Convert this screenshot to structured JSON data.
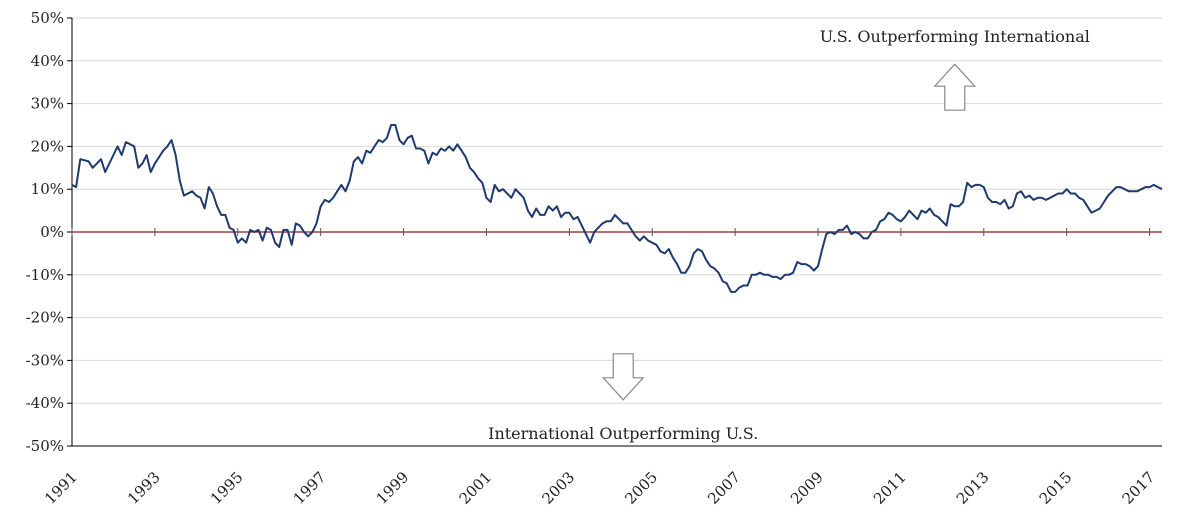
{
  "chart_data": {
    "type": "line",
    "title": "",
    "xlabel": "",
    "ylabel": "",
    "ylim": [
      -50,
      50
    ],
    "xlim": [
      1991.0,
      2017.3
    ],
    "grid": true,
    "legend": "none",
    "y_ticks": [
      "50%",
      "40%",
      "30%",
      "20%",
      "10%",
      "0%",
      "-10%",
      "-20%",
      "-30%",
      "-40%",
      "-50%"
    ],
    "y_tick_values": [
      50,
      40,
      30,
      20,
      10,
      0,
      -10,
      -20,
      -30,
      -40,
      -50
    ],
    "x_ticks": [
      "1991",
      "1993",
      "1995",
      "1997",
      "1999",
      "2001",
      "2003",
      "2005",
      "2007",
      "2009",
      "2011",
      "2013",
      "2015",
      "2017"
    ],
    "x_tick_values": [
      1991,
      1993,
      1995,
      1997,
      1999,
      2001,
      2003,
      2005,
      2007,
      2009,
      2011,
      2013,
      2015,
      2017
    ],
    "colors": {
      "series": "#1f3a6e",
      "zero_line": "#8b1a1a",
      "grid": "#d9d9d9"
    },
    "series": [
      {
        "values": [
          [
            1991.0,
            11
          ],
          [
            1991.1,
            10.5
          ],
          [
            1991.2,
            17
          ],
          [
            1991.4,
            16.5
          ],
          [
            1991.5,
            15
          ],
          [
            1991.7,
            17
          ],
          [
            1991.8,
            14
          ],
          [
            1991.9,
            16
          ],
          [
            1992.1,
            20
          ],
          [
            1992.2,
            18
          ],
          [
            1992.3,
            21
          ],
          [
            1992.5,
            20
          ],
          [
            1992.6,
            15
          ],
          [
            1992.7,
            16
          ],
          [
            1992.8,
            18
          ],
          [
            1992.9,
            14
          ],
          [
            1993.0,
            16
          ],
          [
            1993.2,
            19
          ],
          [
            1993.3,
            20
          ],
          [
            1993.4,
            21.5
          ],
          [
            1993.5,
            18
          ],
          [
            1993.6,
            12
          ],
          [
            1993.7,
            8.5
          ],
          [
            1993.9,
            9.5
          ],
          [
            1994.0,
            8.5
          ],
          [
            1994.1,
            8
          ],
          [
            1994.2,
            5.5
          ],
          [
            1994.3,
            10.5
          ],
          [
            1994.4,
            9
          ],
          [
            1994.5,
            6
          ],
          [
            1994.6,
            4
          ],
          [
            1994.7,
            4
          ],
          [
            1994.8,
            1
          ],
          [
            1994.9,
            0.5
          ],
          [
            1995.0,
            -2.5
          ],
          [
            1995.1,
            -1.5
          ],
          [
            1995.2,
            -2.5
          ],
          [
            1995.3,
            0.5
          ],
          [
            1995.4,
            0
          ],
          [
            1995.5,
            0.5
          ],
          [
            1995.6,
            -2
          ],
          [
            1995.7,
            1
          ],
          [
            1995.8,
            0.5
          ],
          [
            1995.9,
            -2.5
          ],
          [
            1996.0,
            -3.5
          ],
          [
            1996.1,
            0.5
          ],
          [
            1996.2,
            0.5
          ],
          [
            1996.3,
            -3
          ],
          [
            1996.4,
            2
          ],
          [
            1996.5,
            1.5
          ],
          [
            1996.6,
            0
          ],
          [
            1996.7,
            -1
          ],
          [
            1996.8,
            0
          ],
          [
            1996.9,
            2
          ],
          [
            1997.0,
            6
          ],
          [
            1997.1,
            7.5
          ],
          [
            1997.2,
            7
          ],
          [
            1997.3,
            8
          ],
          [
            1997.4,
            9.5
          ],
          [
            1997.5,
            11
          ],
          [
            1997.6,
            9.5
          ],
          [
            1997.7,
            12
          ],
          [
            1997.8,
            16.5
          ],
          [
            1997.9,
            17.5
          ],
          [
            1998.0,
            16
          ],
          [
            1998.1,
            19
          ],
          [
            1998.2,
            18.5
          ],
          [
            1998.3,
            20
          ],
          [
            1998.4,
            21.5
          ],
          [
            1998.5,
            21
          ],
          [
            1998.6,
            22
          ],
          [
            1998.7,
            25
          ],
          [
            1998.8,
            25
          ],
          [
            1998.9,
            21.5
          ],
          [
            1999.0,
            20.5
          ],
          [
            1999.1,
            22
          ],
          [
            1999.2,
            22.5
          ],
          [
            1999.3,
            19.5
          ],
          [
            1999.4,
            19.5
          ],
          [
            1999.5,
            19
          ],
          [
            1999.6,
            16
          ],
          [
            1999.7,
            18.5
          ],
          [
            1999.8,
            18
          ],
          [
            1999.9,
            19.5
          ],
          [
            2000.0,
            19
          ],
          [
            2000.1,
            20
          ],
          [
            2000.2,
            19
          ],
          [
            2000.3,
            20.5
          ],
          [
            2000.4,
            19
          ],
          [
            2000.5,
            17.5
          ],
          [
            2000.6,
            15
          ],
          [
            2000.7,
            14
          ],
          [
            2000.8,
            12.5
          ],
          [
            2000.9,
            11.5
          ],
          [
            2001.0,
            8
          ],
          [
            2001.1,
            7
          ],
          [
            2001.2,
            11
          ],
          [
            2001.3,
            9.5
          ],
          [
            2001.4,
            10
          ],
          [
            2001.5,
            9
          ],
          [
            2001.6,
            8
          ],
          [
            2001.7,
            10
          ],
          [
            2001.8,
            9
          ],
          [
            2001.9,
            8
          ],
          [
            2002.0,
            5
          ],
          [
            2002.1,
            3.5
          ],
          [
            2002.2,
            5.5
          ],
          [
            2002.3,
            4
          ],
          [
            2002.4,
            4
          ],
          [
            2002.5,
            6
          ],
          [
            2002.6,
            5
          ],
          [
            2002.7,
            6
          ],
          [
            2002.8,
            3.5
          ],
          [
            2002.9,
            4.5
          ],
          [
            2003.0,
            4.5
          ],
          [
            2003.1,
            3
          ],
          [
            2003.2,
            3.5
          ],
          [
            2003.3,
            1.5
          ],
          [
            2003.4,
            -0.5
          ],
          [
            2003.5,
            -2.5
          ],
          [
            2003.6,
            0
          ],
          [
            2003.7,
            1
          ],
          [
            2003.8,
            2
          ],
          [
            2003.9,
            2.5
          ],
          [
            2004.0,
            2.5
          ],
          [
            2004.1,
            4
          ],
          [
            2004.2,
            3
          ],
          [
            2004.3,
            2
          ],
          [
            2004.4,
            2
          ],
          [
            2004.5,
            0.5
          ],
          [
            2004.6,
            -1
          ],
          [
            2004.7,
            -2
          ],
          [
            2004.8,
            -1
          ],
          [
            2004.9,
            -2
          ],
          [
            2005.0,
            -2.5
          ],
          [
            2005.1,
            -3
          ],
          [
            2005.2,
            -4.5
          ],
          [
            2005.3,
            -5
          ],
          [
            2005.4,
            -4
          ],
          [
            2005.5,
            -6
          ],
          [
            2005.6,
            -7.5
          ],
          [
            2005.7,
            -9.5
          ],
          [
            2005.8,
            -9.5
          ],
          [
            2005.9,
            -8
          ],
          [
            2006.0,
            -5
          ],
          [
            2006.1,
            -4
          ],
          [
            2006.2,
            -4.5
          ],
          [
            2006.3,
            -6.5
          ],
          [
            2006.4,
            -8
          ],
          [
            2006.5,
            -8.5
          ],
          [
            2006.6,
            -9.5
          ],
          [
            2006.7,
            -11.5
          ],
          [
            2006.8,
            -12
          ],
          [
            2006.9,
            -14
          ],
          [
            2007.0,
            -14
          ],
          [
            2007.1,
            -13
          ],
          [
            2007.2,
            -12.5
          ],
          [
            2007.3,
            -12.5
          ],
          [
            2007.4,
            -10
          ],
          [
            2007.5,
            -10
          ],
          [
            2007.6,
            -9.5
          ],
          [
            2007.7,
            -10
          ],
          [
            2007.8,
            -10
          ],
          [
            2007.9,
            -10.5
          ],
          [
            2008.0,
            -10.5
          ],
          [
            2008.1,
            -11
          ],
          [
            2008.2,
            -10
          ],
          [
            2008.3,
            -10
          ],
          [
            2008.4,
            -9.5
          ],
          [
            2008.5,
            -7
          ],
          [
            2008.6,
            -7.5
          ],
          [
            2008.7,
            -7.5
          ],
          [
            2008.8,
            -8
          ],
          [
            2008.9,
            -9
          ],
          [
            2009.0,
            -8
          ],
          [
            2009.1,
            -4
          ],
          [
            2009.2,
            -0.5
          ],
          [
            2009.3,
            0
          ],
          [
            2009.4,
            -0.5
          ],
          [
            2009.5,
            0.5
          ],
          [
            2009.6,
            0.5
          ],
          [
            2009.7,
            1.5
          ],
          [
            2009.8,
            -0.5
          ],
          [
            2009.9,
            0
          ],
          [
            2010.0,
            -0.5
          ],
          [
            2010.1,
            -1.5
          ],
          [
            2010.2,
            -1.5
          ],
          [
            2010.3,
            0
          ],
          [
            2010.4,
            0.5
          ],
          [
            2010.5,
            2.5
          ],
          [
            2010.6,
            3
          ],
          [
            2010.7,
            4.5
          ],
          [
            2010.8,
            4
          ],
          [
            2010.9,
            3
          ],
          [
            2011.0,
            2.5
          ],
          [
            2011.1,
            3.5
          ],
          [
            2011.2,
            5
          ],
          [
            2011.3,
            4
          ],
          [
            2011.4,
            3
          ],
          [
            2011.5,
            5
          ],
          [
            2011.6,
            4.5
          ],
          [
            2011.7,
            5.5
          ],
          [
            2011.8,
            4
          ],
          [
            2011.9,
            3.5
          ],
          [
            2012.0,
            2.5
          ],
          [
            2012.1,
            1.5
          ],
          [
            2012.2,
            6.5
          ],
          [
            2012.3,
            6
          ],
          [
            2012.4,
            6
          ],
          [
            2012.5,
            7
          ],
          [
            2012.6,
            11.5
          ],
          [
            2012.7,
            10.5
          ],
          [
            2012.8,
            11
          ],
          [
            2012.9,
            11
          ],
          [
            2013.0,
            10.5
          ],
          [
            2013.1,
            8
          ],
          [
            2013.2,
            7
          ],
          [
            2013.3,
            7
          ],
          [
            2013.4,
            6.5
          ],
          [
            2013.5,
            7.5
          ],
          [
            2013.6,
            5.5
          ],
          [
            2013.7,
            6
          ],
          [
            2013.8,
            9
          ],
          [
            2013.9,
            9.5
          ],
          [
            2014.0,
            8
          ],
          [
            2014.1,
            8.5
          ],
          [
            2014.2,
            7.5
          ],
          [
            2014.3,
            8
          ],
          [
            2014.4,
            8
          ],
          [
            2014.5,
            7.5
          ],
          [
            2014.6,
            8
          ],
          [
            2014.7,
            8.5
          ],
          [
            2014.8,
            9
          ],
          [
            2014.9,
            9
          ],
          [
            2015.0,
            10
          ],
          [
            2015.1,
            9
          ],
          [
            2015.2,
            9
          ],
          [
            2015.3,
            8
          ],
          [
            2015.4,
            7.5
          ],
          [
            2015.5,
            6
          ],
          [
            2015.6,
            4.5
          ],
          [
            2015.7,
            5
          ],
          [
            2015.8,
            5.5
          ],
          [
            2015.9,
            7
          ],
          [
            2016.0,
            8.5
          ],
          [
            2016.1,
            9.5
          ],
          [
            2016.2,
            10.5
          ],
          [
            2016.3,
            10.5
          ],
          [
            2016.4,
            10
          ],
          [
            2016.5,
            9.5
          ],
          [
            2016.6,
            9.5
          ],
          [
            2016.7,
            9.5
          ],
          [
            2016.8,
            10
          ],
          [
            2016.9,
            10.5
          ],
          [
            2017.0,
            10.5
          ],
          [
            2017.1,
            11
          ],
          [
            2017.2,
            10.5
          ],
          [
            2017.3,
            10
          ]
        ]
      }
    ],
    "annotations": [
      {
        "text": "U.S. Outperforming International",
        "arrow": "up",
        "x": 2012.3,
        "y": 35
      },
      {
        "text": "International Outperforming U.S.",
        "arrow": "down",
        "x": 2004.3,
        "y": -35
      }
    ]
  }
}
